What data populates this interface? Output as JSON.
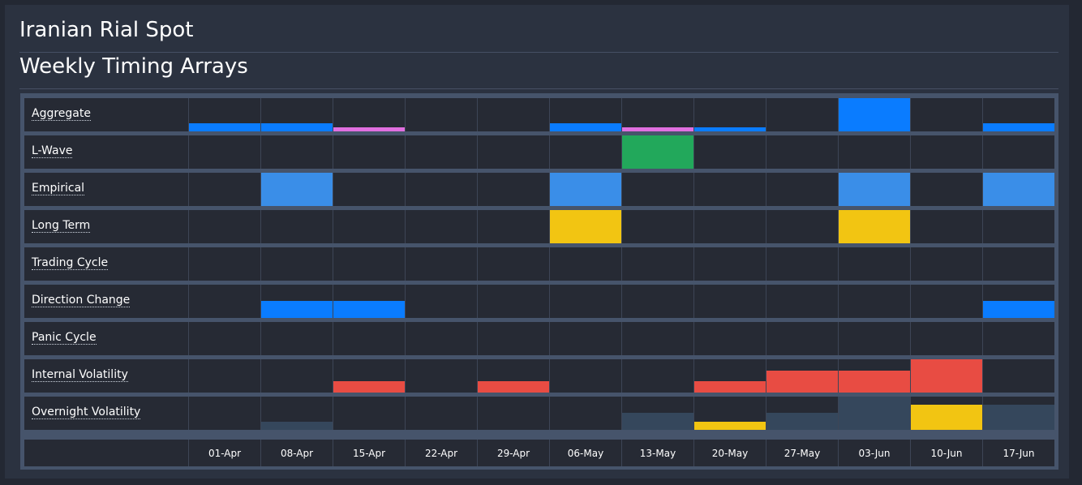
{
  "header": {
    "title": "Iranian Rial Spot",
    "subtitle": "Weekly Timing Arrays"
  },
  "colors": {
    "blue": "#0a7cff",
    "light_blue": "#3a8ee8",
    "pink": "#e06fe0",
    "green": "#22a85b",
    "yellow": "#f2c512",
    "red": "#e84c43",
    "slate": "#35475c"
  },
  "dates": [
    "01-Apr",
    "08-Apr",
    "15-Apr",
    "22-Apr",
    "29-Apr",
    "06-May",
    "13-May",
    "20-May",
    "27-May",
    "03-Jun",
    "10-Jun",
    "17-Jun"
  ],
  "rows": [
    {
      "label": "Aggregate",
      "bars": [
        {
          "col": 0,
          "level": 0.25,
          "color": "blue"
        },
        {
          "col": 1,
          "level": 0.25,
          "color": "blue"
        },
        {
          "col": 2,
          "level": 0.125,
          "color": "pink"
        },
        {
          "col": 5,
          "level": 0.25,
          "color": "blue"
        },
        {
          "col": 6,
          "level": 0.125,
          "color": "pink"
        },
        {
          "col": 7,
          "level": 0.125,
          "color": "blue"
        },
        {
          "col": 9,
          "level": 1.0,
          "color": "blue"
        },
        {
          "col": 11,
          "level": 0.25,
          "color": "blue"
        }
      ]
    },
    {
      "label": "L-Wave",
      "bars": [
        {
          "col": 6,
          "level": 1.0,
          "color": "green"
        }
      ]
    },
    {
      "label": "Empirical",
      "bars": [
        {
          "col": 1,
          "level": 1.0,
          "color": "light_blue"
        },
        {
          "col": 5,
          "level": 1.0,
          "color": "light_blue"
        },
        {
          "col": 9,
          "level": 1.0,
          "color": "light_blue"
        },
        {
          "col": 11,
          "level": 1.0,
          "color": "light_blue"
        }
      ]
    },
    {
      "label": "Long Term",
      "bars": [
        {
          "col": 5,
          "level": 1.0,
          "color": "yellow"
        },
        {
          "col": 9,
          "level": 1.0,
          "color": "yellow"
        }
      ]
    },
    {
      "label": "Trading Cycle",
      "bars": []
    },
    {
      "label": "Direction Change",
      "bars": [
        {
          "col": 1,
          "level": 0.5,
          "color": "blue"
        },
        {
          "col": 2,
          "level": 0.5,
          "color": "blue"
        },
        {
          "col": 11,
          "level": 0.5,
          "color": "blue"
        }
      ]
    },
    {
      "label": "Panic Cycle",
      "bars": []
    },
    {
      "label": "Internal Volatility",
      "bars": [
        {
          "col": 2,
          "level": 0.33,
          "color": "red"
        },
        {
          "col": 4,
          "level": 0.33,
          "color": "red"
        },
        {
          "col": 7,
          "level": 0.33,
          "color": "red"
        },
        {
          "col": 8,
          "level": 0.67,
          "color": "red"
        },
        {
          "col": 9,
          "level": 0.67,
          "color": "red"
        },
        {
          "col": 10,
          "level": 1.0,
          "color": "red"
        }
      ]
    },
    {
      "label": "Overnight Volatility",
      "bars": [
        {
          "col": 1,
          "level": 0.25,
          "color": "slate"
        },
        {
          "col": 6,
          "level": 0.5,
          "color": "slate"
        },
        {
          "col": 7,
          "level": 0.25,
          "color": "yellow"
        },
        {
          "col": 8,
          "level": 0.5,
          "color": "slate"
        },
        {
          "col": 9,
          "level": 1.0,
          "color": "slate"
        },
        {
          "col": 10,
          "level": 0.75,
          "color": "yellow"
        },
        {
          "col": 11,
          "level": 0.75,
          "color": "slate"
        }
      ]
    }
  ]
}
